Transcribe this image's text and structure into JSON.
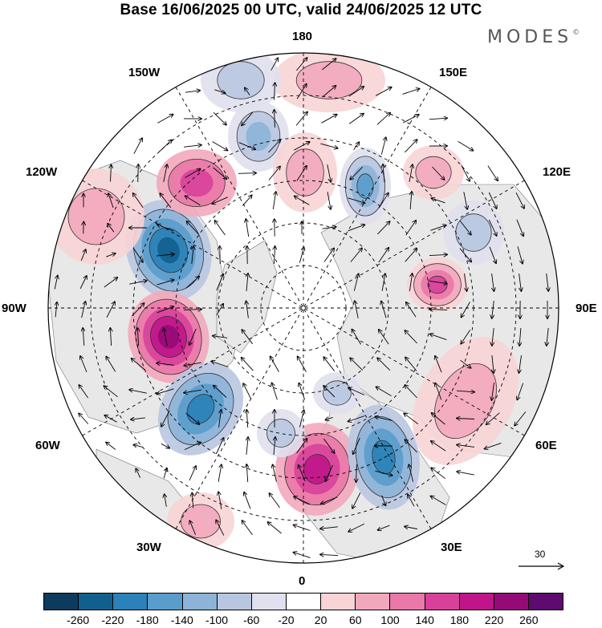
{
  "title": "Base 16/06/2025 00 UTC, valid 24/06/2025 12 UTC",
  "brand": "MODES",
  "brand_mark": "©",
  "longitude_labels": {
    "top": "180",
    "bottom": "0",
    "left": "90W",
    "right": "90E",
    "upper_left_1": "150W",
    "upper_left_2": "120W",
    "upper_right_1": "150E",
    "upper_right_2": "120E",
    "lower_left_1": "60W",
    "lower_left_2": "30W",
    "lower_right_1": "60E",
    "lower_right_2": "30E"
  },
  "reference_vector": {
    "value": "30"
  },
  "colorbar": {
    "colors": [
      "#0d3b5e",
      "#125f8e",
      "#2a82b8",
      "#5a9ccc",
      "#8db4d8",
      "#b8c6e0",
      "#e0e0ee",
      "#ffffff",
      "#f8d4d6",
      "#f2a8bc",
      "#ea78a8",
      "#d8419a",
      "#c0158a",
      "#960a78",
      "#5e0a6e"
    ],
    "ticks": [
      "-260",
      "-220",
      "-180",
      "-140",
      "-100",
      "-60",
      "-20",
      "20",
      "60",
      "100",
      "140",
      "180",
      "220",
      "260"
    ]
  },
  "map_colors": {
    "ocean": "#ffffff",
    "land": "#e8e8e8",
    "graticule": "#000000"
  }
}
